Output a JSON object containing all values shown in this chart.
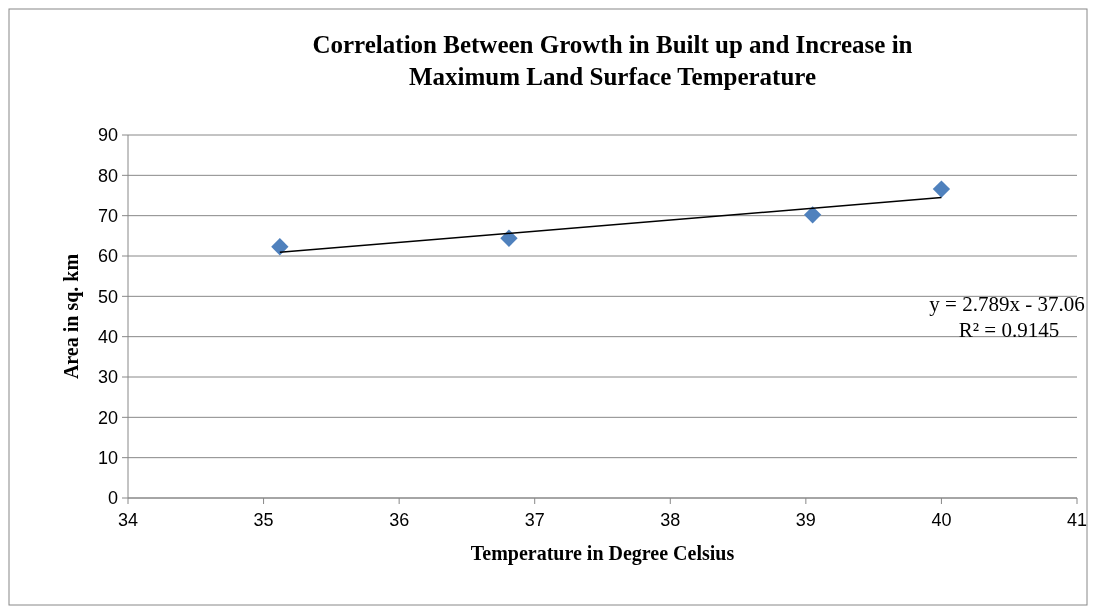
{
  "chart_data": {
    "type": "scatter",
    "title": "Correlation Between Growth in Built up and Increase in Maximum Land Surface Temperature",
    "xlabel": "Temperature in Degree Celsius",
    "ylabel": "Area in sq. km",
    "series": [
      {
        "color": "#4f81bd",
        "marker": "diamond",
        "x": [
          35.12,
          36.81,
          39.05,
          40.0
        ],
        "values": [
          62.3,
          64.4,
          70.2,
          76.6
        ]
      },
      {
        "type": "line",
        "color": "#000000",
        "marker": "none",
        "line_style": "solid",
        "x": [
          35.12,
          40.0
        ],
        "values": [
          60.9,
          74.5
        ]
      }
    ],
    "xlim": [
      34,
      41
    ],
    "xticks": [
      34,
      35,
      36,
      37,
      38,
      39,
      40,
      41
    ],
    "ylim": [
      0,
      90
    ],
    "yticks": [
      0,
      10,
      20,
      30,
      40,
      50,
      60,
      70,
      80,
      90
    ],
    "grid": "y",
    "annotations": [
      "y = 2.789x - 37.06",
      "R² = 0.9145"
    ]
  }
}
